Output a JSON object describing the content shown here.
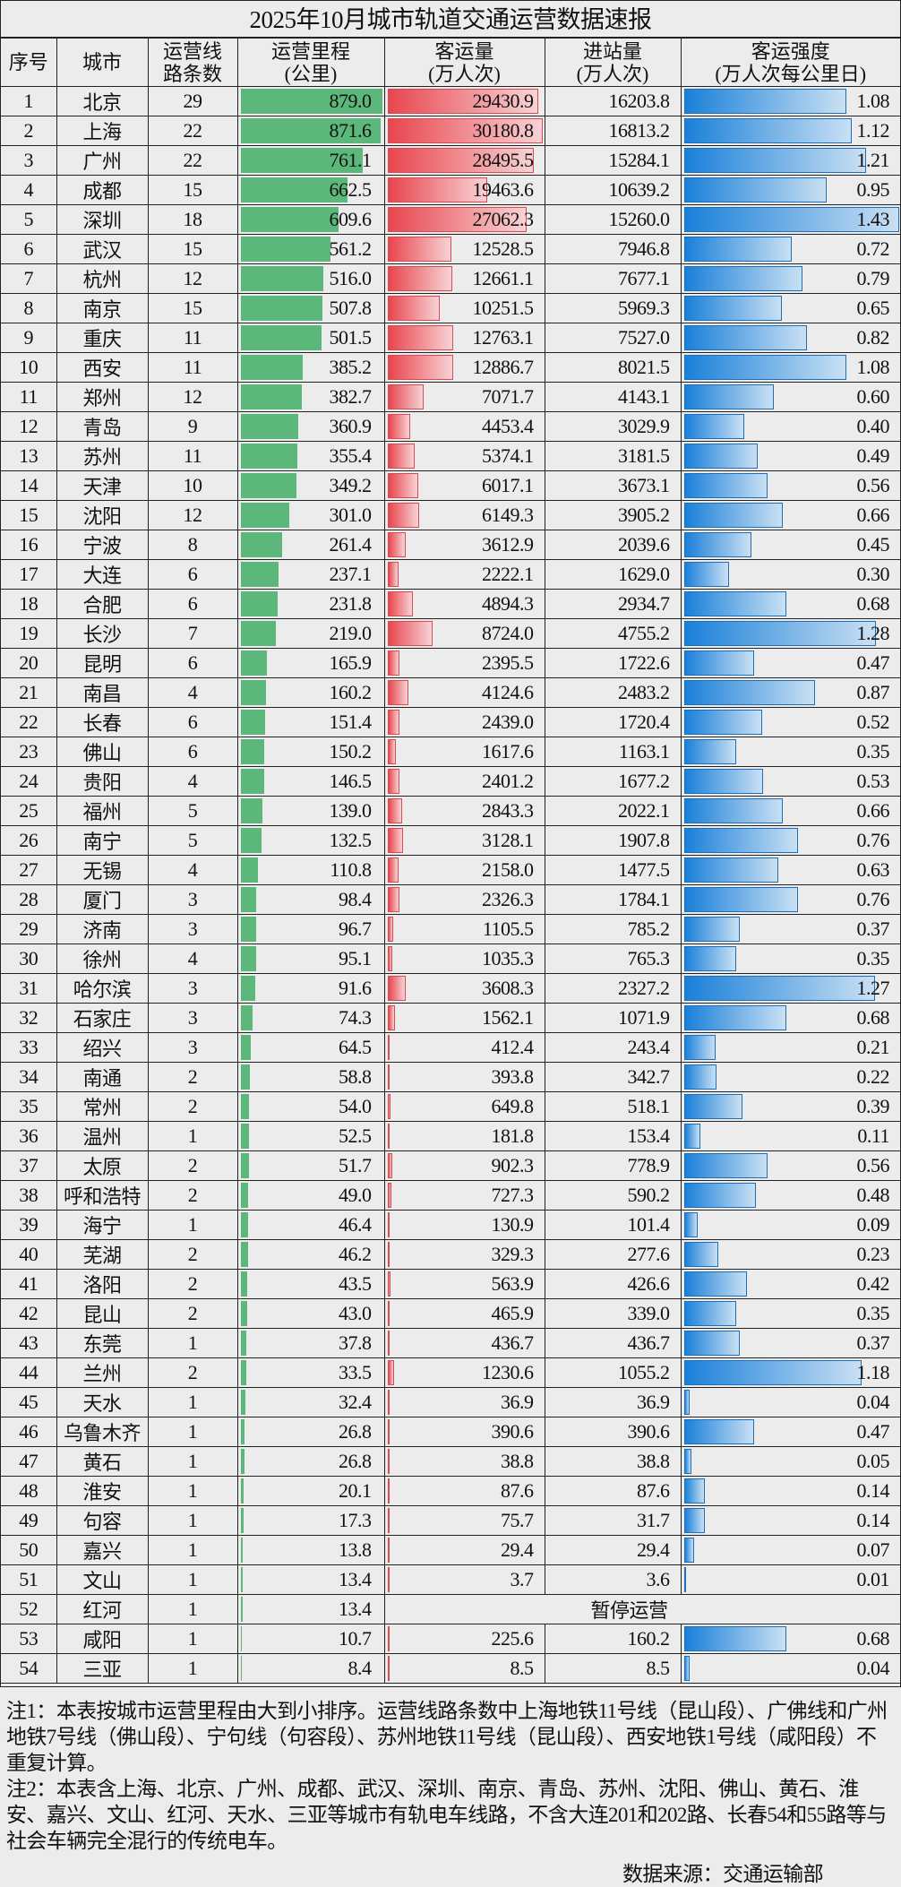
{
  "title": "2025年10月城市轨道交通运营数据速报",
  "headers": [
    "序号",
    "城市",
    "运营线\n路条数",
    "运营里程\n(公里)",
    "客运量\n(万人次)",
    "进站量\n(万人次)",
    "客运强度\n(万人次每公里日)"
  ],
  "colors": {
    "mileage_bar": "#5cb87a",
    "ridership_bar": "#e8464e",
    "intensity_bar": "#1a80d9"
  },
  "chart_data": {
    "type": "table",
    "title": "2025年10月城市轨道交通运营数据速报",
    "columns": [
      "序号",
      "城市",
      "运营线路条数",
      "运营里程(公里)",
      "客运量(万人次)",
      "进站量(万人次)",
      "客运强度(万人次每公里日)"
    ],
    "rows": [
      [
        "1",
        "北京",
        "29",
        "879.0",
        "29430.9",
        "16203.8",
        "1.08"
      ],
      [
        "2",
        "上海",
        "22",
        "871.6",
        "30180.8",
        "16813.2",
        "1.12"
      ],
      [
        "3",
        "广州",
        "22",
        "761.1",
        "28495.5",
        "15284.1",
        "1.21"
      ],
      [
        "4",
        "成都",
        "15",
        "662.5",
        "19463.6",
        "10639.2",
        "0.95"
      ],
      [
        "5",
        "深圳",
        "18",
        "609.6",
        "27062.3",
        "15260.0",
        "1.43"
      ],
      [
        "6",
        "武汉",
        "15",
        "561.2",
        "12528.5",
        "7946.8",
        "0.72"
      ],
      [
        "7",
        "杭州",
        "12",
        "516.0",
        "12661.1",
        "7677.1",
        "0.79"
      ],
      [
        "8",
        "南京",
        "15",
        "507.8",
        "10251.5",
        "5969.3",
        "0.65"
      ],
      [
        "9",
        "重庆",
        "11",
        "501.5",
        "12763.1",
        "7527.0",
        "0.82"
      ],
      [
        "10",
        "西安",
        "11",
        "385.2",
        "12886.7",
        "8021.5",
        "1.08"
      ],
      [
        "11",
        "郑州",
        "12",
        "382.7",
        "7071.7",
        "4143.1",
        "0.60"
      ],
      [
        "12",
        "青岛",
        "9",
        "360.9",
        "4453.4",
        "3029.9",
        "0.40"
      ],
      [
        "13",
        "苏州",
        "11",
        "355.4",
        "5374.1",
        "3181.5",
        "0.49"
      ],
      [
        "14",
        "天津",
        "10",
        "349.2",
        "6017.1",
        "3673.1",
        "0.56"
      ],
      [
        "15",
        "沈阳",
        "12",
        "301.0",
        "6149.3",
        "3905.2",
        "0.66"
      ],
      [
        "16",
        "宁波",
        "8",
        "261.4",
        "3612.9",
        "2039.6",
        "0.45"
      ],
      [
        "17",
        "大连",
        "6",
        "237.1",
        "2222.1",
        "1629.0",
        "0.30"
      ],
      [
        "18",
        "合肥",
        "6",
        "231.8",
        "4894.3",
        "2934.7",
        "0.68"
      ],
      [
        "19",
        "长沙",
        "7",
        "219.0",
        "8724.0",
        "4755.2",
        "1.28"
      ],
      [
        "20",
        "昆明",
        "6",
        "165.9",
        "2395.5",
        "1722.6",
        "0.47"
      ],
      [
        "21",
        "南昌",
        "4",
        "160.2",
        "4124.6",
        "2483.2",
        "0.87"
      ],
      [
        "22",
        "长春",
        "6",
        "151.4",
        "2439.0",
        "1720.4",
        "0.52"
      ],
      [
        "23",
        "佛山",
        "6",
        "150.2",
        "1617.6",
        "1163.1",
        "0.35"
      ],
      [
        "24",
        "贵阳",
        "4",
        "146.5",
        "2401.2",
        "1677.2",
        "0.53"
      ],
      [
        "25",
        "福州",
        "5",
        "139.0",
        "2843.3",
        "2022.1",
        "0.66"
      ],
      [
        "26",
        "南宁",
        "5",
        "132.5",
        "3128.1",
        "1907.8",
        "0.76"
      ],
      [
        "27",
        "无锡",
        "4",
        "110.8",
        "2158.0",
        "1477.5",
        "0.63"
      ],
      [
        "28",
        "厦门",
        "3",
        "98.4",
        "2326.3",
        "1784.1",
        "0.76"
      ],
      [
        "29",
        "济南",
        "3",
        "96.7",
        "1105.5",
        "785.2",
        "0.37"
      ],
      [
        "30",
        "徐州",
        "4",
        "95.1",
        "1035.3",
        "765.3",
        "0.35"
      ],
      [
        "31",
        "哈尔滨",
        "3",
        "91.6",
        "3608.3",
        "2327.2",
        "1.27"
      ],
      [
        "32",
        "石家庄",
        "3",
        "74.3",
        "1562.1",
        "1071.9",
        "0.68"
      ],
      [
        "33",
        "绍兴",
        "3",
        "64.5",
        "412.4",
        "243.4",
        "0.21"
      ],
      [
        "34",
        "南通",
        "2",
        "58.8",
        "393.8",
        "342.7",
        "0.22"
      ],
      [
        "35",
        "常州",
        "2",
        "54.0",
        "649.8",
        "518.1",
        "0.39"
      ],
      [
        "36",
        "温州",
        "1",
        "52.5",
        "181.8",
        "153.4",
        "0.11"
      ],
      [
        "37",
        "太原",
        "2",
        "51.7",
        "902.3",
        "778.9",
        "0.56"
      ],
      [
        "38",
        "呼和浩特",
        "2",
        "49.0",
        "727.3",
        "590.2",
        "0.48"
      ],
      [
        "39",
        "海宁",
        "1",
        "46.4",
        "130.9",
        "101.4",
        "0.09"
      ],
      [
        "40",
        "芜湖",
        "2",
        "46.2",
        "329.3",
        "277.6",
        "0.23"
      ],
      [
        "41",
        "洛阳",
        "2",
        "43.5",
        "563.9",
        "426.6",
        "0.42"
      ],
      [
        "42",
        "昆山",
        "2",
        "43.0",
        "465.9",
        "339.0",
        "0.35"
      ],
      [
        "43",
        "东莞",
        "1",
        "37.8",
        "436.7",
        "436.7",
        "0.37"
      ],
      [
        "44",
        "兰州",
        "2",
        "33.5",
        "1230.6",
        "1055.2",
        "1.18"
      ],
      [
        "45",
        "天水",
        "1",
        "32.4",
        "36.9",
        "36.9",
        "0.04"
      ],
      [
        "46",
        "乌鲁木齐",
        "1",
        "26.8",
        "390.6",
        "390.6",
        "0.47"
      ],
      [
        "47",
        "黄石",
        "1",
        "26.8",
        "38.8",
        "38.8",
        "0.05"
      ],
      [
        "48",
        "淮安",
        "1",
        "20.1",
        "87.6",
        "87.6",
        "0.14"
      ],
      [
        "49",
        "句容",
        "1",
        "17.3",
        "75.7",
        "31.7",
        "0.14"
      ],
      [
        "50",
        "嘉兴",
        "1",
        "13.8",
        "29.4",
        "29.4",
        "0.07"
      ],
      [
        "51",
        "文山",
        "1",
        "13.4",
        "3.7",
        "3.6",
        "0.01"
      ],
      [
        "52",
        "红河",
        "1",
        "13.4",
        "",
        "",
        ""
      ],
      [
        "53",
        "咸阳",
        "1",
        "10.7",
        "225.6",
        "160.2",
        "0.68"
      ],
      [
        "54",
        "三亚",
        "1",
        "8.4",
        "8.5",
        "8.5",
        "0.04"
      ]
    ],
    "suspended_text": "暂停运营",
    "suspended_row": "52"
  },
  "notes": {
    "note1": "注1：本表按城市运营里程由大到小排序。运营线路条数中上海地铁11号线（昆山段）、广佛线和广州地铁7号线（佛山段）、宁句线（句容段）、苏州地铁11号线（昆山段）、西安地铁1号线（咸阳段）不重复计算。",
    "note2": "注2：本表含上海、北京、广州、成都、武汉、深圳、南京、青岛、苏州、沈阳、佛山、黄石、淮安、嘉兴、文山、红河、天水、三亚等城市有轨电车线路，不含大连201和202路、长春54和55路等与社会车辆完全混行的传统电车。",
    "source": "数据来源：交通运输部"
  }
}
